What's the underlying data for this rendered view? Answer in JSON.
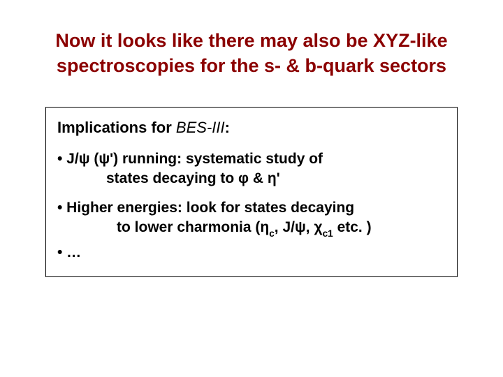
{
  "colors": {
    "title": "#8b0000",
    "body": "#000000",
    "background": "#ffffff",
    "border": "#000000"
  },
  "title": "Now it looks like there may also be XYZ-like spectroscopies for the s- & b-quark sectors",
  "box": {
    "heading_prefix": "Implications for ",
    "heading_italic": "BES-III",
    "heading_suffix": ":",
    "bullet1_a": "• J/ψ (ψ') running: systematic study of",
    "bullet1_b": "states decaying to φ & η'",
    "bullet2_a": "• Higher energies: look for states decaying",
    "bullet2_b_pre": "to lower charmonia (η",
    "bullet2_b_sub1": "c",
    "bullet2_b_mid": ", J/ψ, χ",
    "bullet2_b_sub2": "c1",
    "bullet2_b_post": " etc. )",
    "bullet3": "• …"
  },
  "typography": {
    "title_fontsize": 27,
    "body_fontsize": 21,
    "heading_fontsize": 22,
    "font_family": "Comic Sans MS"
  }
}
